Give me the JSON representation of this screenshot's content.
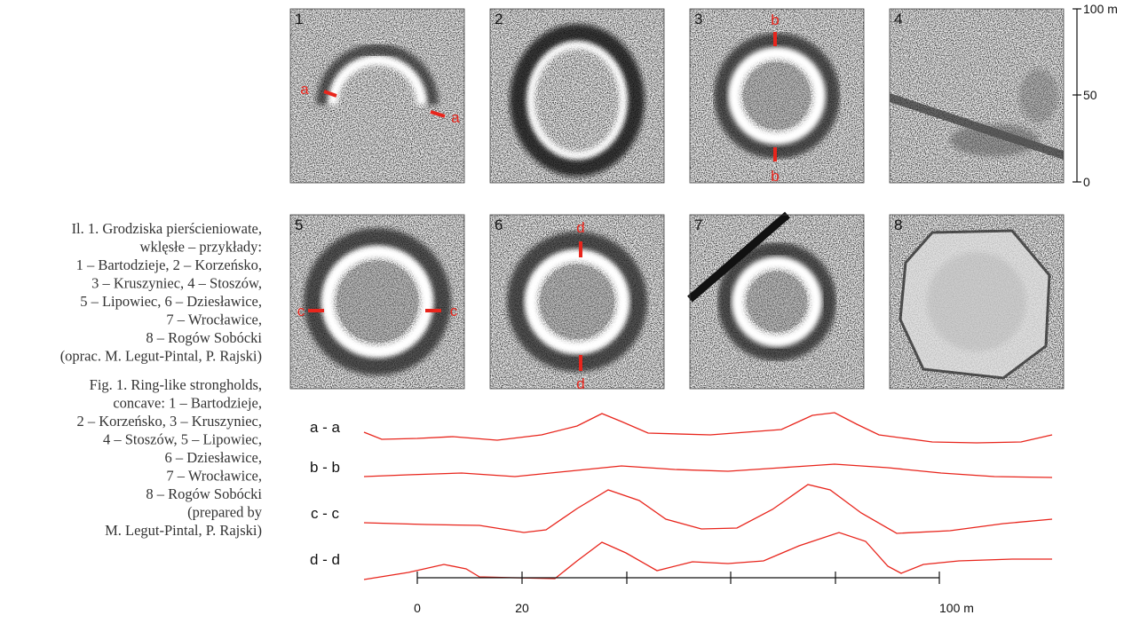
{
  "caption_pl": [
    "Il. 1. Grodziska pierścieniowate,",
    "wklęsłe – przykłady:",
    "1 – Bartodzieje, 2 – Korzeńsko,",
    "3 – Kruszyniec, 4 – Stoszów,",
    "5 – Lipowiec, 6 – Dziesławice,",
    "7 – Wrocławice,",
    "8 – Rogów Sobócki",
    "(oprac. M. Legut-Pintal, P. Rajski)"
  ],
  "caption_en": [
    "Fig. 1. Ring-like strongholds,",
    "concave: 1 – Bartodzieje,",
    "2 – Korzeńsko, 3 – Kruszyniec,",
    "4 – Stoszów, 5 – Lipowiec,",
    "6 – Dziesławice,",
    "7 – Wrocławice,",
    "8 – Rogów Sobócki",
    "(prepared by",
    "M. Legut-Pintal, P. Rajski)"
  ],
  "panels": [
    {
      "label": "1",
      "markers": [
        "a",
        "a"
      ]
    },
    {
      "label": "2",
      "markers": []
    },
    {
      "label": "3",
      "markers": [
        "b",
        "b"
      ]
    },
    {
      "label": "4",
      "markers": []
    },
    {
      "label": "5",
      "markers": [
        "c",
        "c"
      ]
    },
    {
      "label": "6",
      "markers": [
        "d",
        "d"
      ]
    },
    {
      "label": "7",
      "markers": []
    },
    {
      "label": "8",
      "markers": []
    }
  ],
  "vertical_scale": [
    "100 m",
    "50",
    "0"
  ],
  "profile_labels": [
    "a - a",
    "b - b",
    "c - c",
    "d - d"
  ],
  "horizontal_scale": [
    "0",
    "20",
    "100 m"
  ]
}
